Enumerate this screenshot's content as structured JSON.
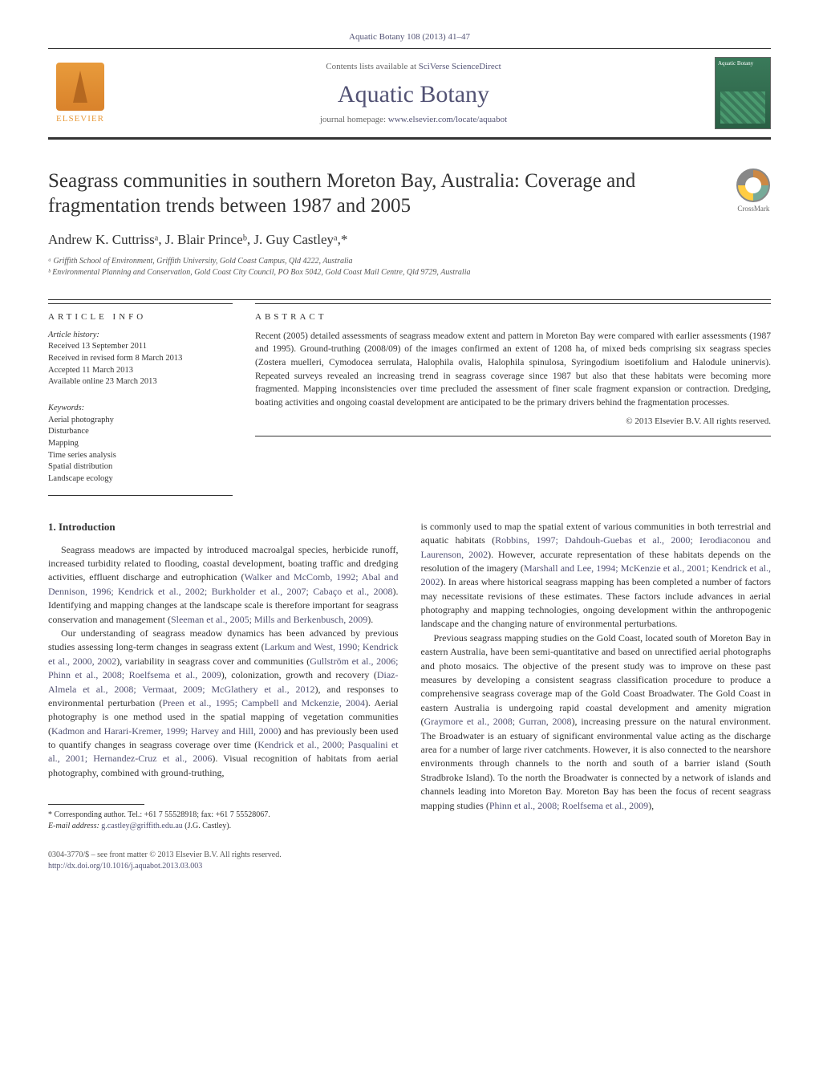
{
  "journal_header": "Aquatic Botany 108 (2013) 41–47",
  "masthead": {
    "elsevier_label": "ELSEVIER",
    "contents_prefix": "Contents lists available at ",
    "contents_link": "SciVerse ScienceDirect",
    "journal_title": "Aquatic Botany",
    "homepage_prefix": "journal homepage: ",
    "homepage_link": "www.elsevier.com/locate/aquabot",
    "cover_label": "Aquatic Botany"
  },
  "title": "Seagrass communities in southern Moreton Bay, Australia: Coverage and fragmentation trends between 1987 and 2005",
  "crossmark_label": "CrossMark",
  "authors": "Andrew K. Cuttrissᵃ, J. Blair Princeᵇ, J. Guy Castleyᵃ,*",
  "affiliations": {
    "a": "ᵃ Griffith School of Environment, Griffith University, Gold Coast Campus, Qld 4222, Australia",
    "b": "ᵇ Environmental Planning and Conservation, Gold Coast City Council, PO Box 5042, Gold Coast Mail Centre, Qld 9729, Australia"
  },
  "article_info_label": "ARTICLE INFO",
  "abstract_label": "ABSTRACT",
  "history": {
    "hdr": "Article history:",
    "received": "Received 13 September 2011",
    "revised": "Received in revised form 8 March 2013",
    "accepted": "Accepted 11 March 2013",
    "online": "Available online 23 March 2013"
  },
  "keywords": {
    "hdr": "Keywords:",
    "items": [
      "Aerial photography",
      "Disturbance",
      "Mapping",
      "Time series analysis",
      "Spatial distribution",
      "Landscape ecology"
    ]
  },
  "abstract": "Recent (2005) detailed assessments of seagrass meadow extent and pattern in Moreton Bay were compared with earlier assessments (1987 and 1995). Ground-truthing (2008/09) of the images confirmed an extent of 1208 ha, of mixed beds comprising six seagrass species (Zostera muelleri, Cymodocea serrulata, Halophila ovalis, Halophila spinulosa, Syringodium isoetifolium and Halodule uninervis). Repeated surveys revealed an increasing trend in seagrass coverage since 1987 but also that these habitats were becoming more fragmented. Mapping inconsistencies over time precluded the assessment of finer scale fragment expansion or contraction. Dredging, boating activities and ongoing coastal development are anticipated to be the primary drivers behind the fragmentation processes.",
  "abstract_copyright": "© 2013 Elsevier B.V. All rights reserved.",
  "intro_heading": "1. Introduction",
  "intro_p1_a": "Seagrass meadows are impacted by introduced macroalgal species, herbicide runoff, increased turbidity related to flooding, coastal development, boating traffic and dredging activities, effluent discharge and eutrophication (",
  "intro_p1_ref1": "Walker and McComb, 1992; Abal and Dennison, 1996; Kendrick et al., 2002; Burkholder et al., 2007; Cabaço et al., 2008",
  "intro_p1_b": "). Identifying and mapping changes at the landscape scale is therefore important for seagrass conservation and management (",
  "intro_p1_ref2": "Sleeman et al., 2005; Mills and Berkenbusch, 2009",
  "intro_p1_c": ").",
  "intro_p2_a": "Our understanding of seagrass meadow dynamics has been advanced by previous studies assessing long-term changes in seagrass extent (",
  "intro_p2_ref1": "Larkum and West, 1990; Kendrick et al., 2000, 2002",
  "intro_p2_b": "), variability in seagrass cover and communities (",
  "intro_p2_ref2": "Gullström et al., 2006; Phinn et al., 2008; Roelfsema et al., 2009",
  "intro_p2_c": "), colonization, growth and recovery (",
  "intro_p2_ref3": "Diaz-Almela et al., 2008; Vermaat, 2009; McGlathery et al., 2012",
  "intro_p2_d": "), and responses to environmental perturbation (",
  "intro_p2_ref4": "Preen et al., 1995; Campbell and Mckenzie, 2004",
  "intro_p2_e": "). Aerial photography is one method used in the spatial mapping of vegetation communities (",
  "intro_p2_ref5": "Kadmon and Harari-Kremer, 1999; Harvey and Hill, 2000",
  "intro_p2_f": ") and has previously been used to quantify changes in seagrass coverage over time (",
  "intro_p2_ref6": "Kendrick et al., 2000; Pasqualini et al., 2001; Hernandez-Cruz et al., 2006",
  "intro_p2_g": "). Visual recognition of habitats from aerial photography, combined with ground-truthing,",
  "intro_p3_a": "is commonly used to map the spatial extent of various communities in both terrestrial and aquatic habitats (",
  "intro_p3_ref1": "Robbins, 1997; Dahdouh-Guebas et al., 2000; Ierodiaconou and Laurenson, 2002",
  "intro_p3_b": "). However, accurate representation of these habitats depends on the resolution of the imagery (",
  "intro_p3_ref2": "Marshall and Lee, 1994; McKenzie et al., 2001; Kendrick et al., 2002",
  "intro_p3_c": "). In areas where historical seagrass mapping has been completed a number of factors may necessitate revisions of these estimates. These factors include advances in aerial photography and mapping technologies, ongoing development within the anthropogenic landscape and the changing nature of environmental perturbations.",
  "intro_p4_a": "Previous seagrass mapping studies on the Gold Coast, located south of Moreton Bay in eastern Australia, have been semi-quantitative and based on unrectified aerial photographs and photo mosaics. The objective of the present study was to improve on these past measures by developing a consistent seagrass classification procedure to produce a comprehensive seagrass coverage map of the Gold Coast Broadwater. The Gold Coast in eastern Australia is undergoing rapid coastal development and amenity migration (",
  "intro_p4_ref1": "Graymore et al., 2008; Gurran, 2008",
  "intro_p4_b": "), increasing pressure on the natural environment. The Broadwater is an estuary of significant environmental value acting as the discharge area for a number of large river catchments. However, it is also connected to the nearshore environments through channels to the north and south of a barrier island (South Stradbroke Island). To the north the Broadwater is connected by a network of islands and channels leading into Moreton Bay. Moreton Bay has been the focus of recent seagrass mapping studies (",
  "intro_p4_ref2": "Phinn et al., 2008; Roelfsema et al., 2009",
  "intro_p4_c": "),",
  "footnote": {
    "corr": "* Corresponding author. Tel.: +61 7 55528918; fax: +61 7 55528067.",
    "email_label": "E-mail address: ",
    "email": "g.castley@griffith.edu.au",
    "email_who": " (J.G. Castley)."
  },
  "bottom": {
    "issn": "0304-3770/$ – see front matter © 2013 Elsevier B.V. All rights reserved.",
    "doi": "http://dx.doi.org/10.1016/j.aquabot.2013.03.003"
  },
  "colors": {
    "link": "#525274",
    "elsevier_orange": "#e89b3c",
    "text": "#333333"
  }
}
